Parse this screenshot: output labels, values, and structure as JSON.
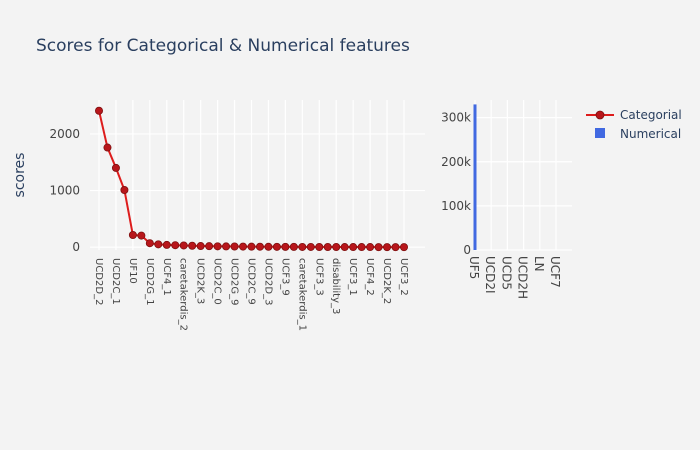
{
  "chart_data": {
    "title": "Scores for Categorical & Numerical features",
    "legend": {
      "placement": "top-right",
      "entries": [
        {
          "label": "Categorial",
          "color": "#dd1c1c",
          "marker": "line-circle"
        },
        {
          "label": "Numerical",
          "color": "#4169e1",
          "marker": "square"
        }
      ]
    },
    "panels": [
      {
        "type": "line",
        "series_name": "Categorial",
        "color": "#dd1c1c",
        "marker_color": "#b8161b",
        "ylabel": "scores",
        "ylim": [
          -50,
          2600
        ],
        "yticks": [
          0,
          1000,
          2000
        ],
        "yticklabels": [
          "0",
          "1000",
          "2000"
        ],
        "grid": true,
        "x_labels_visible": [
          "UCD2D_2",
          "UCD2C_1",
          "UF10",
          "UCD2G_1",
          "UCF4_1",
          "caretakerdis_2",
          "UCD2K_3",
          "UCD2C_0",
          "UCD2G_9",
          "UCD2C_9",
          "UCD2D_3",
          "UCF3_9",
          "caretakerdis_1",
          "UCF3_3",
          "disability_3",
          "UCF3_1",
          "UCF4_2",
          "UCD2K_2",
          "UCF3_2"
        ],
        "values": [
          2410,
          1760,
          1400,
          1010,
          215,
          205,
          70,
          50,
          40,
          35,
          30,
          25,
          20,
          18,
          15,
          13,
          12,
          10,
          9,
          8,
          7,
          6,
          5,
          5,
          4,
          4,
          3,
          3,
          3,
          2,
          2,
          2,
          2,
          1,
          1,
          1,
          1
        ]
      },
      {
        "type": "bar",
        "series_name": "Numerical",
        "color": "#4169e1",
        "categories": [
          "UF5",
          "UCD2I",
          "UCD5",
          "UCD2H",
          "LN",
          "UCF7"
        ],
        "values": [
          330000,
          0,
          0,
          0,
          0,
          0
        ],
        "ylim": [
          0,
          340000
        ],
        "yticks": [
          0,
          100000,
          200000,
          300000
        ],
        "yticklabels": [
          "0",
          "100k",
          "200k",
          "300k"
        ],
        "grid": true
      }
    ]
  }
}
